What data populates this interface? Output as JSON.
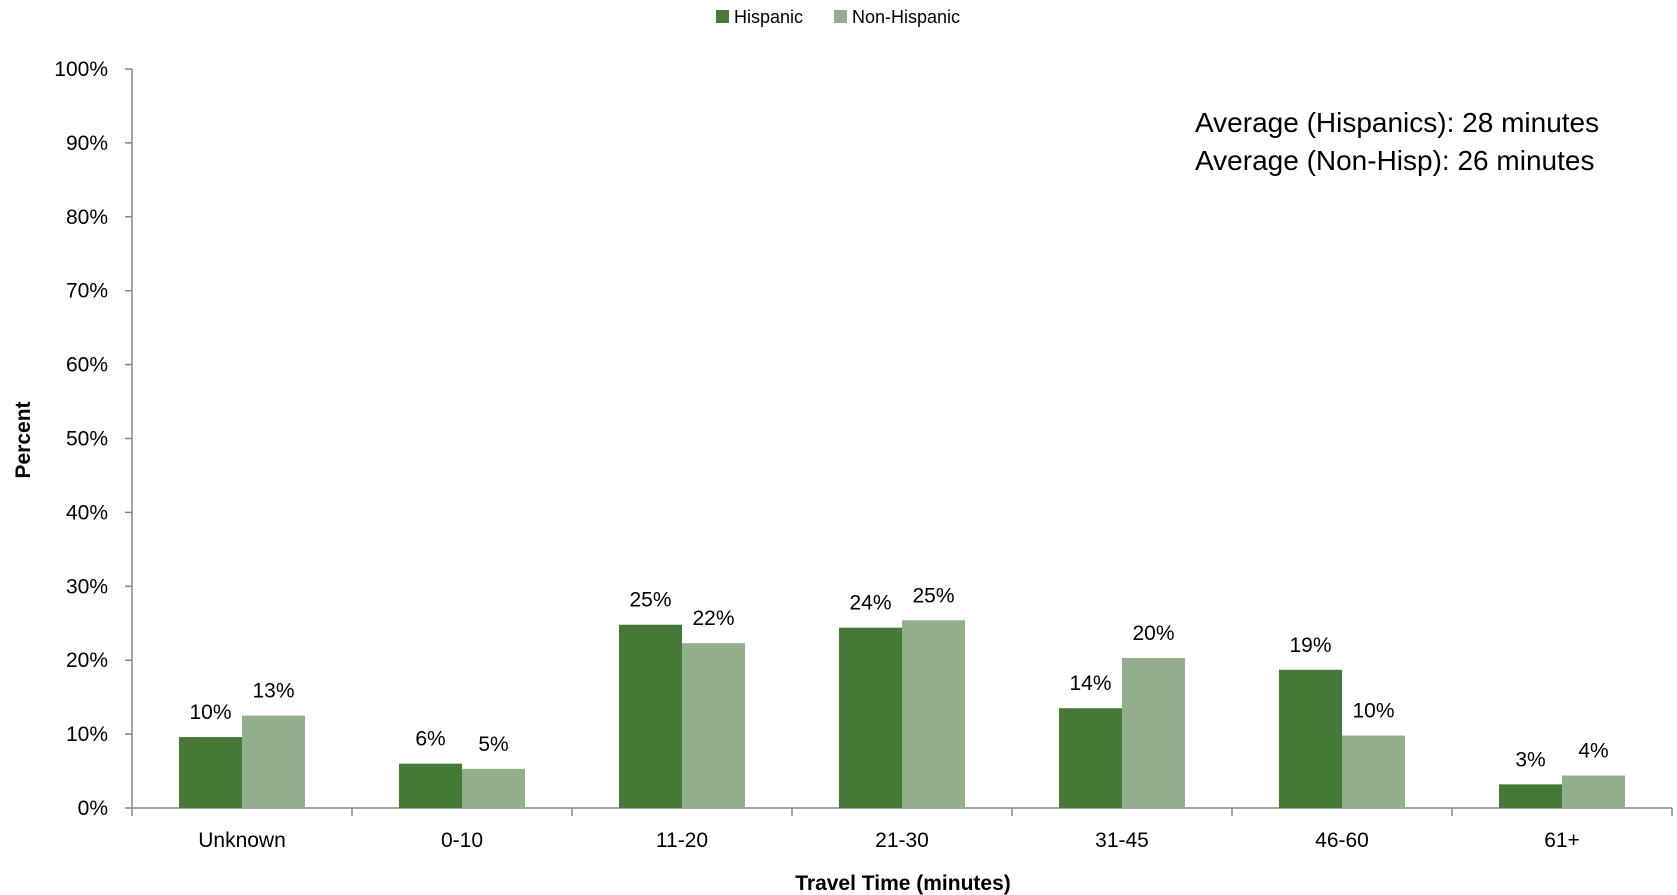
{
  "chart_data": {
    "type": "bar",
    "categories": [
      "Unknown",
      "0-10",
      "11-20",
      "21-30",
      "31-45",
      "46-60",
      "61+"
    ],
    "series": [
      {
        "name": "Hispanic",
        "values": [
          9.6,
          6.0,
          24.8,
          24.4,
          13.5,
          18.7,
          3.2
        ],
        "labels": [
          "10%",
          "6%",
          "25%",
          "24%",
          "14%",
          "19%",
          "3%"
        ],
        "color": "#467937"
      },
      {
        "name": "Non-Hispanic",
        "values": [
          12.5,
          5.3,
          22.3,
          25.4,
          20.3,
          9.8,
          4.4
        ],
        "labels": [
          "13%",
          "5%",
          "22%",
          "25%",
          "20%",
          "10%",
          "4%"
        ],
        "color": "#93ae8c"
      }
    ],
    "xlabel": "Travel Time (minutes)",
    "ylabel": "Percent",
    "ylim": [
      0,
      100
    ],
    "y_ticks": [
      "0%",
      "10%",
      "20%",
      "30%",
      "40%",
      "50%",
      "60%",
      "70%",
      "80%",
      "90%",
      "100%"
    ],
    "grid": false,
    "legend_position": "top-center",
    "annotations": [
      "Average (Hispanics): 28 minutes",
      "Average (Non-Hisp): 26 minutes"
    ]
  }
}
